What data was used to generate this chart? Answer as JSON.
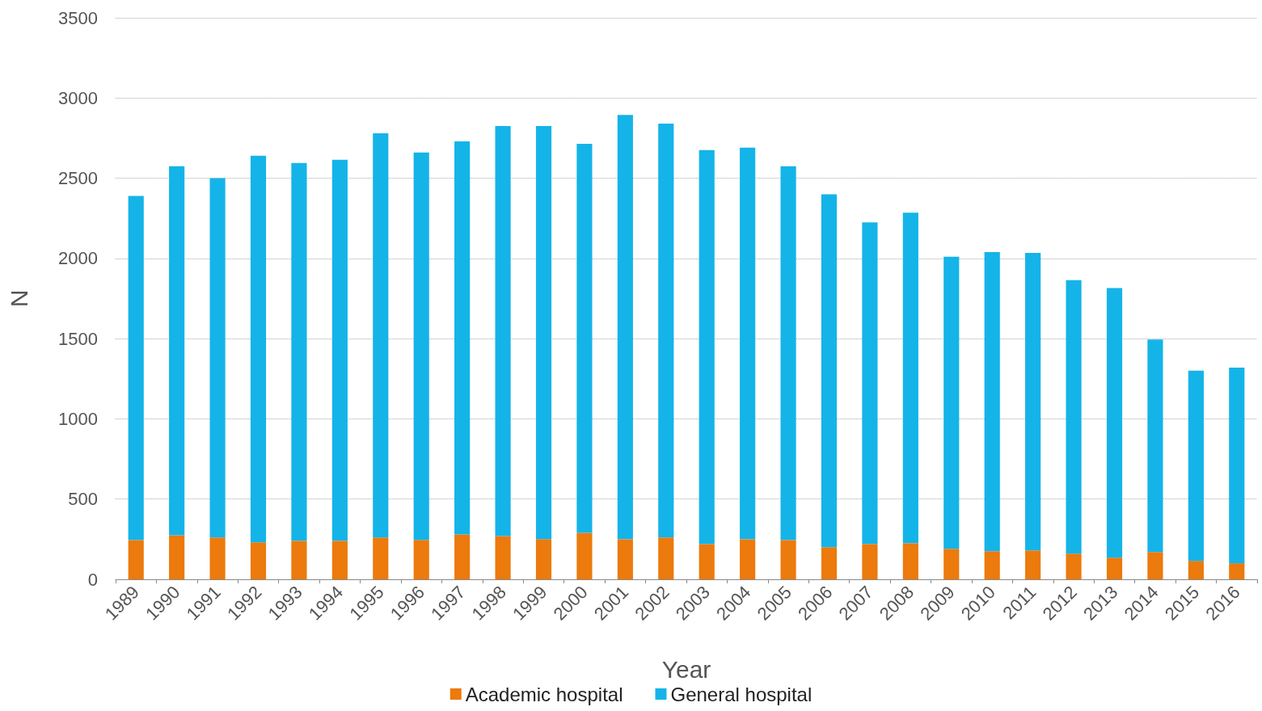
{
  "chart_data": {
    "type": "bar",
    "stacked": true,
    "xlabel": "Year",
    "ylabel": "N",
    "categories": [
      "1989",
      "1990",
      "1991",
      "1992",
      "1993",
      "1994",
      "1995",
      "1996",
      "1997",
      "1998",
      "1999",
      "2000",
      "2001",
      "2002",
      "2003",
      "2004",
      "2005",
      "2006",
      "2007",
      "2008",
      "2009",
      "2010",
      "2011",
      "2012",
      "2013",
      "2014",
      "2015",
      "2016"
    ],
    "series": [
      {
        "name": "Academic hospital",
        "color": "#ec7a0c",
        "values": [
          245,
          275,
          260,
          230,
          240,
          240,
          260,
          245,
          280,
          270,
          250,
          290,
          250,
          260,
          220,
          250,
          245,
          200,
          220,
          225,
          190,
          175,
          180,
          160,
          135,
          170,
          115,
          100
        ]
      },
      {
        "name": "General hospital",
        "color": "#14b4e8",
        "values": [
          2145,
          2300,
          2240,
          2410,
          2355,
          2375,
          2520,
          2415,
          2450,
          2555,
          2575,
          2425,
          2645,
          2580,
          2455,
          2440,
          2330,
          2200,
          2005,
          2060,
          1820,
          1865,
          1855,
          1705,
          1680,
          1325,
          1185,
          1220
        ]
      }
    ],
    "ylim": [
      0,
      3500
    ],
    "yticks": [
      0,
      500,
      1000,
      1500,
      2000,
      2500,
      3000,
      3500
    ],
    "grid": "y",
    "legend": "bottom"
  }
}
